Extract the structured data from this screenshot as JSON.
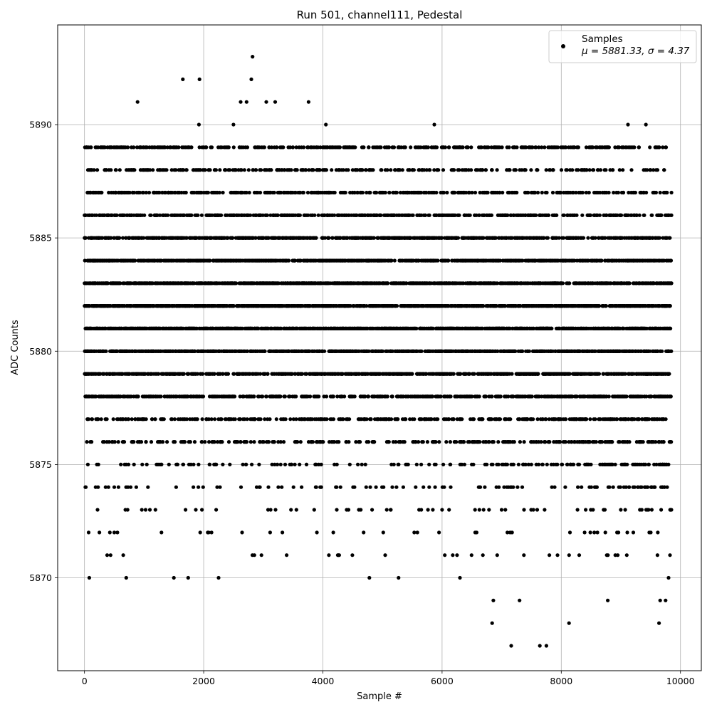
{
  "chart_data": {
    "type": "scatter",
    "title": "Run 501, channel111, Pedestal",
    "xlabel": "Sample #",
    "ylabel": "ADC Counts",
    "xlim": [
      -450,
      10350
    ],
    "ylim": [
      5865.9,
      5894.4
    ],
    "xticks": [
      0,
      2000,
      4000,
      6000,
      8000,
      10000
    ],
    "yticks": [
      5870,
      5875,
      5880,
      5885,
      5890
    ],
    "grid": true,
    "legend_position": "top-right",
    "color": "#000000",
    "legend": {
      "label": "Samples",
      "stats": "μ = 5881.33, σ = 4.37"
    },
    "n_samples": 9855,
    "series": [
      {
        "name": "Samples",
        "points": [
          {
            "x": 0,
            "y": 5883
          },
          {
            "x": 10,
            "y": 5886
          },
          {
            "x": 20,
            "y": 5885
          },
          {
            "x": 30,
            "y": 5881
          },
          {
            "x": 40,
            "y": 5876
          },
          {
            "x": 50,
            "y": 5877
          },
          {
            "x": 60,
            "y": 5884
          },
          {
            "x": 70,
            "y": 5872
          },
          {
            "x": 80,
            "y": 5870
          },
          {
            "x": 90,
            "y": 5887
          },
          {
            "x": 100,
            "y": 5880
          },
          {
            "x": 120,
            "y": 5879
          },
          {
            "x": 160,
            "y": 5888
          },
          {
            "x": 180,
            "y": 5878
          },
          {
            "x": 250,
            "y": 5872
          },
          {
            "x": 380,
            "y": 5871
          },
          {
            "x": 410,
            "y": 5888
          },
          {
            "x": 500,
            "y": 5872
          },
          {
            "x": 620,
            "y": 5889
          },
          {
            "x": 650,
            "y": 5871
          },
          {
            "x": 700,
            "y": 5870
          },
          {
            "x": 890,
            "y": 5891
          },
          {
            "x": 990,
            "y": 5889
          },
          {
            "x": 1090,
            "y": 5889
          },
          {
            "x": 1500,
            "y": 5870
          },
          {
            "x": 1650,
            "y": 5892
          },
          {
            "x": 1740,
            "y": 5870
          },
          {
            "x": 1920,
            "y": 5890
          },
          {
            "x": 1930,
            "y": 5892
          },
          {
            "x": 2250,
            "y": 5870
          },
          {
            "x": 2500,
            "y": 5890
          },
          {
            "x": 2620,
            "y": 5891
          },
          {
            "x": 2720,
            "y": 5891
          },
          {
            "x": 2800,
            "y": 5892
          },
          {
            "x": 2820,
            "y": 5893
          },
          {
            "x": 3050,
            "y": 5891
          },
          {
            "x": 3200,
            "y": 5891
          },
          {
            "x": 3320,
            "y": 5872
          },
          {
            "x": 3760,
            "y": 5891
          },
          {
            "x": 4050,
            "y": 5890
          },
          {
            "x": 4100,
            "y": 5871
          },
          {
            "x": 4250,
            "y": 5871
          },
          {
            "x": 4780,
            "y": 5870
          },
          {
            "x": 5270,
            "y": 5870
          },
          {
            "x": 5870,
            "y": 5890
          },
          {
            "x": 6000,
            "y": 5889
          },
          {
            "x": 6300,
            "y": 5870
          },
          {
            "x": 6840,
            "y": 5868
          },
          {
            "x": 6860,
            "y": 5869
          },
          {
            "x": 7160,
            "y": 5867
          },
          {
            "x": 7300,
            "y": 5869
          },
          {
            "x": 7640,
            "y": 5867
          },
          {
            "x": 7750,
            "y": 5867
          },
          {
            "x": 8130,
            "y": 5868
          },
          {
            "x": 8780,
            "y": 5869
          },
          {
            "x": 8980,
            "y": 5888
          },
          {
            "x": 9120,
            "y": 5890
          },
          {
            "x": 9420,
            "y": 5890
          },
          {
            "x": 9640,
            "y": 5868
          },
          {
            "x": 9660,
            "y": 5869
          },
          {
            "x": 9750,
            "y": 5869
          },
          {
            "x": 9800,
            "y": 5870
          },
          {
            "x": 9850,
            "y": 5887
          }
        ]
      }
    ]
  }
}
